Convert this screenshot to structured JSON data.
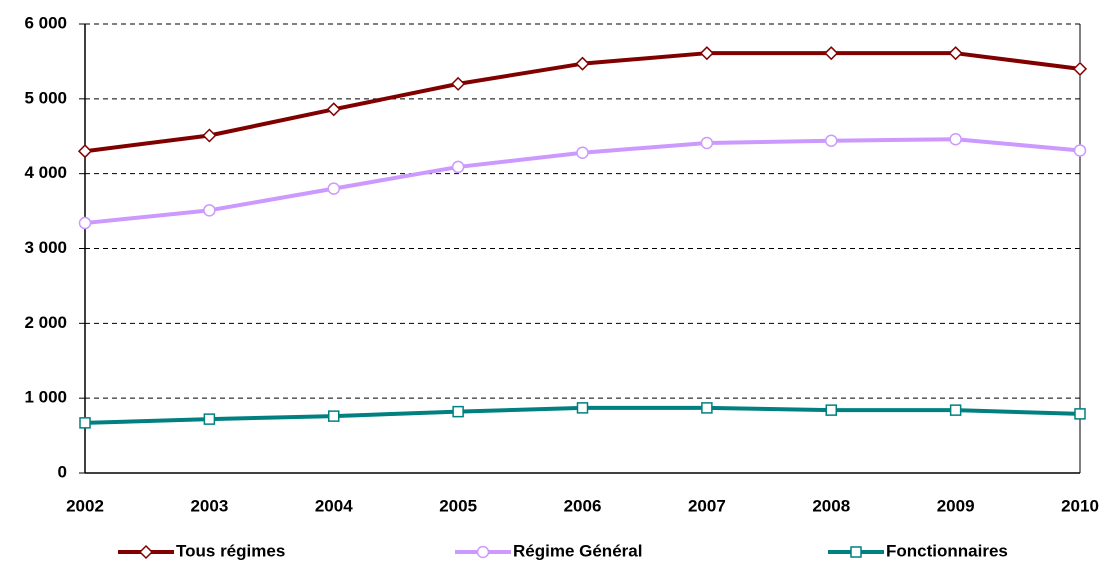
{
  "chart_data": {
    "type": "line",
    "categories": [
      "2002",
      "2003",
      "2004",
      "2005",
      "2006",
      "2007",
      "2008",
      "2009",
      "2010"
    ],
    "series": [
      {
        "name": "Tous régimes",
        "color": "#800000",
        "marker": "diamond",
        "values": [
          4300,
          4510,
          4860,
          5200,
          5470,
          5610,
          5610,
          5610,
          5400
        ]
      },
      {
        "name": "Régime Général",
        "color": "#cc99ff",
        "marker": "circle",
        "values": [
          3340,
          3510,
          3800,
          4090,
          4280,
          4410,
          4440,
          4460,
          4310
        ]
      },
      {
        "name": "Fonctionnaires",
        "color": "#008080",
        "marker": "square",
        "values": [
          670,
          720,
          760,
          820,
          870,
          870,
          840,
          840,
          790
        ]
      }
    ],
    "ylim": [
      0,
      6000
    ],
    "yticks": [
      0,
      {
        "value": 1000,
        "label": "1 000"
      },
      {
        "value": 2000,
        "label": "2 000"
      },
      {
        "value": 3000,
        "label": "3 000"
      },
      {
        "value": 4000,
        "label": "4 000"
      },
      {
        "value": 5000,
        "label": "5 000"
      },
      {
        "value": 6000,
        "label": "6 000"
      }
    ],
    "grid": true,
    "legend": "bottom"
  }
}
